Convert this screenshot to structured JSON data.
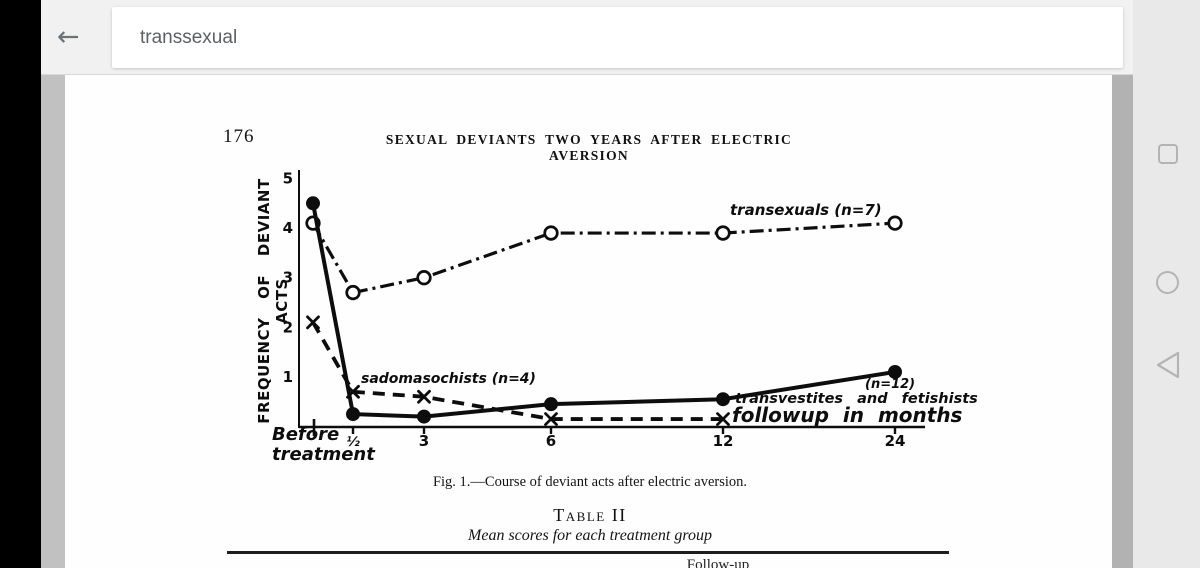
{
  "browser": {
    "search_value": "transsexual"
  },
  "paper": {
    "page_number": "176",
    "running_title": "SEXUAL DEVIANTS TWO YEARS AFTER ELECTRIC AVERSION",
    "figure_caption": "Fig. 1.—Course of deviant acts after electric aversion.",
    "table_title": "Table II",
    "table_subtitle": "Mean scores for each treatment group",
    "table_partial_text": "Follow-up"
  },
  "chart_data": {
    "type": "line",
    "title": "Fig. 1.—Course of deviant acts after electric aversion.",
    "ylabel": "FREQUENCY OF DEVIANT ACTS",
    "xlabel_annotation": "followup in months",
    "x_tick_labels": [
      "Before treatment",
      "½",
      "3",
      "6",
      "12",
      "24"
    ],
    "x_values_months": [
      0,
      0.5,
      3,
      6,
      12,
      24
    ],
    "y_ticks": [
      1,
      2,
      3,
      4,
      5
    ],
    "ylim": [
      0,
      5
    ],
    "grid": false,
    "series": [
      {
        "name": "transexuals (n=7)",
        "line": "dash-dot",
        "marker": "open-circle",
        "values": [
          4.1,
          2.7,
          3.0,
          3.9,
          3.9,
          4.1
        ]
      },
      {
        "name": "transvestites and fetishists (n=12)",
        "line": "solid",
        "marker": "filled-circle",
        "values": [
          4.5,
          0.25,
          0.2,
          0.45,
          0.55,
          1.1
        ]
      },
      {
        "name": "sadomasochists (n=4)",
        "line": "dashed",
        "marker": "x",
        "values": [
          2.1,
          0.7,
          0.6,
          0.15,
          0.15,
          null
        ]
      }
    ],
    "annotations": {
      "transexuals": "transexuals (n=7)",
      "sadomasochists": "sadomasochists (n=4)",
      "n12": "(n=12)",
      "transvestites": "transvestites and fetishists",
      "followup": "followup in months"
    }
  }
}
